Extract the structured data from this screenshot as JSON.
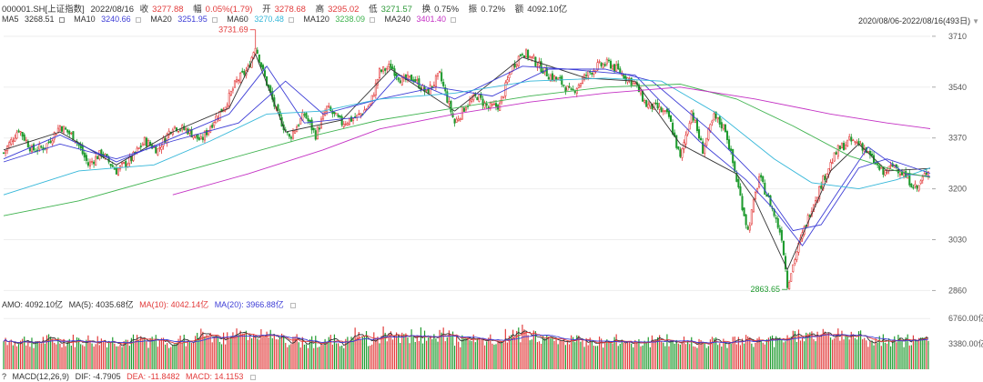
{
  "header": {
    "code": "000001.SH[上证指数]",
    "date": "2022/08/16",
    "close_label": "收",
    "close": "3277.88",
    "change_label": "幅",
    "change": "0.05%(1.79)",
    "open_label": "开",
    "open": "3278.68",
    "high_label": "高",
    "high": "3295.02",
    "low_label": "低",
    "low": "3271.57",
    "turnover_label": "换",
    "turnover": "0.75%",
    "amp_label": "振",
    "amp": "0.72%",
    "amount_label": "额",
    "amount": "4092.10亿"
  },
  "ma_legend": [
    {
      "label": "MA5",
      "value": "3268.51",
      "color": "#333333"
    },
    {
      "label": "MA10",
      "value": "3240.66",
      "color": "#3d3dd6"
    },
    {
      "label": "MA20",
      "value": "3251.95",
      "color": "#3d3dd6"
    },
    {
      "label": "MA60",
      "value": "3270.48",
      "color": "#35b7d9"
    },
    {
      "label": "MA120",
      "value": "3238.09",
      "color": "#3fb34f"
    },
    {
      "label": "MA240",
      "value": "3401.40",
      "color": "#c431c4"
    }
  ],
  "range_text": "2020/08/06-2022/08/16(493日)",
  "volume_legend": {
    "amo": "AMO: 4092.10亿",
    "ma5": "MA(5): 4035.68亿",
    "ma10": "MA(10): 4042.14亿",
    "ma20": "MA(20): 3966.88亿"
  },
  "macd_legend": {
    "q": "?",
    "name": "MACD(12,26,9)",
    "dif": "DIF: -4.7905",
    "dea": "DEA: -11.8482",
    "macd": "MACD: 14.1153"
  },
  "colors": {
    "up": "#e23b3b",
    "down": "#1f9b2f",
    "ma5": "#333333",
    "ma10": "#3d3dd6",
    "ma20": "#3d3dd6",
    "ma60": "#35b7d9",
    "ma120": "#3fb34f",
    "ma240": "#c431c4",
    "grid": "#eeeeee"
  },
  "chart_data": {
    "type": "candlestick",
    "x_range": [
      "2020/08/06",
      "2022/08/16"
    ],
    "trading_days": 493,
    "price_axis": {
      "ticks": [
        2860,
        3030,
        3200,
        3370,
        3540,
        3710
      ],
      "ylim": [
        2840,
        3740
      ]
    },
    "annotations": [
      {
        "label": "3731.69",
        "value": 3731.69,
        "type": "high",
        "day_index": 134
      },
      {
        "label": "2863.65",
        "value": 2863.65,
        "type": "low",
        "day_index": 417
      }
    ],
    "close_path": [
      [
        0,
        3320
      ],
      [
        8,
        3400
      ],
      [
        15,
        3330
      ],
      [
        22,
        3340
      ],
      [
        30,
        3410
      ],
      [
        38,
        3370
      ],
      [
        45,
        3280
      ],
      [
        52,
        3320
      ],
      [
        60,
        3260
      ],
      [
        68,
        3300
      ],
      [
        75,
        3360
      ],
      [
        82,
        3330
      ],
      [
        90,
        3410
      ],
      [
        98,
        3395
      ],
      [
        105,
        3360
      ],
      [
        112,
        3430
      ],
      [
        118,
        3480
      ],
      [
        124,
        3560
      ],
      [
        130,
        3600
      ],
      [
        134,
        3680
      ],
      [
        138,
        3590
      ],
      [
        145,
        3460
      ],
      [
        152,
        3370
      ],
      [
        160,
        3450
      ],
      [
        166,
        3380
      ],
      [
        172,
        3470
      ],
      [
        180,
        3420
      ],
      [
        188,
        3440
      ],
      [
        195,
        3480
      ],
      [
        200,
        3590
      ],
      [
        206,
        3610
      ],
      [
        212,
        3560
      ],
      [
        218,
        3570
      ],
      [
        225,
        3520
      ],
      [
        232,
        3580
      ],
      [
        240,
        3420
      ],
      [
        246,
        3480
      ],
      [
        252,
        3510
      ],
      [
        258,
        3470
      ],
      [
        264,
        3480
      ],
      [
        270,
        3600
      ],
      [
        276,
        3660
      ],
      [
        282,
        3630
      ],
      [
        290,
        3580
      ],
      [
        296,
        3560
      ],
      [
        302,
        3520
      ],
      [
        310,
        3580
      ],
      [
        316,
        3610
      ],
      [
        322,
        3620
      ],
      [
        330,
        3580
      ],
      [
        336,
        3550
      ],
      [
        342,
        3480
      ],
      [
        348,
        3470
      ],
      [
        354,
        3440
      ],
      [
        360,
        3300
      ],
      [
        366,
        3460
      ],
      [
        372,
        3330
      ],
      [
        378,
        3440
      ],
      [
        384,
        3400
      ],
      [
        390,
        3230
      ],
      [
        396,
        3060
      ],
      [
        402,
        3240
      ],
      [
        408,
        3150
      ],
      [
        414,
        3040
      ],
      [
        417,
        2880
      ],
      [
        422,
        2990
      ],
      [
        430,
        3140
      ],
      [
        438,
        3260
      ],
      [
        444,
        3330
      ],
      [
        450,
        3360
      ],
      [
        456,
        3350
      ],
      [
        462,
        3300
      ],
      [
        468,
        3250
      ],
      [
        474,
        3280
      ],
      [
        480,
        3240
      ],
      [
        486,
        3200
      ],
      [
        493,
        3278
      ]
    ],
    "moving_averages": {
      "MA5": [
        [
          0,
          3330
        ],
        [
          30,
          3390
        ],
        [
          60,
          3280
        ],
        [
          90,
          3390
        ],
        [
          120,
          3470
        ],
        [
          134,
          3650
        ],
        [
          150,
          3390
        ],
        [
          180,
          3430
        ],
        [
          206,
          3600
        ],
        [
          240,
          3460
        ],
        [
          276,
          3640
        ],
        [
          310,
          3570
        ],
        [
          336,
          3560
        ],
        [
          360,
          3350
        ],
        [
          390,
          3250
        ],
        [
          400,
          3160
        ],
        [
          417,
          2930
        ],
        [
          440,
          3260
        ],
        [
          455,
          3350
        ],
        [
          470,
          3260
        ],
        [
          493,
          3268
        ]
      ],
      "MA10": [
        [
          0,
          3300
        ],
        [
          30,
          3380
        ],
        [
          60,
          3290
        ],
        [
          90,
          3370
        ],
        [
          120,
          3450
        ],
        [
          140,
          3610
        ],
        [
          160,
          3420
        ],
        [
          190,
          3440
        ],
        [
          210,
          3580
        ],
        [
          240,
          3500
        ],
        [
          276,
          3610
        ],
        [
          300,
          3600
        ],
        [
          336,
          3580
        ],
        [
          370,
          3360
        ],
        [
          395,
          3230
        ],
        [
          410,
          3130
        ],
        [
          425,
          3010
        ],
        [
          445,
          3200
        ],
        [
          460,
          3340
        ],
        [
          480,
          3250
        ],
        [
          493,
          3241
        ]
      ],
      "MA20": [
        [
          0,
          3290
        ],
        [
          30,
          3350
        ],
        [
          60,
          3300
        ],
        [
          90,
          3360
        ],
        [
          125,
          3420
        ],
        [
          150,
          3560
        ],
        [
          170,
          3450
        ],
        [
          200,
          3500
        ],
        [
          230,
          3540
        ],
        [
          260,
          3510
        ],
        [
          290,
          3600
        ],
        [
          320,
          3600
        ],
        [
          345,
          3560
        ],
        [
          375,
          3400
        ],
        [
          400,
          3240
        ],
        [
          420,
          3060
        ],
        [
          435,
          3080
        ],
        [
          455,
          3270
        ],
        [
          470,
          3300
        ],
        [
          493,
          3252
        ]
      ],
      "MA60": [
        [
          0,
          3180
        ],
        [
          40,
          3260
        ],
        [
          80,
          3280
        ],
        [
          110,
          3360
        ],
        [
          140,
          3450
        ],
        [
          170,
          3460
        ],
        [
          200,
          3500
        ],
        [
          240,
          3520
        ],
        [
          280,
          3560
        ],
        [
          320,
          3570
        ],
        [
          350,
          3560
        ],
        [
          380,
          3450
        ],
        [
          410,
          3300
        ],
        [
          430,
          3220
        ],
        [
          455,
          3200
        ],
        [
          475,
          3230
        ],
        [
          493,
          3270
        ]
      ],
      "MA120": [
        [
          0,
          3110
        ],
        [
          40,
          3160
        ],
        [
          80,
          3230
        ],
        [
          120,
          3300
        ],
        [
          160,
          3370
        ],
        [
          200,
          3430
        ],
        [
          240,
          3470
        ],
        [
          280,
          3510
        ],
        [
          320,
          3540
        ],
        [
          360,
          3550
        ],
        [
          390,
          3500
        ],
        [
          420,
          3410
        ],
        [
          450,
          3310
        ],
        [
          475,
          3260
        ],
        [
          493,
          3238
        ]
      ],
      "MA240": [
        [
          90,
          3180
        ],
        [
          130,
          3250
        ],
        [
          170,
          3330
        ],
        [
          200,
          3400
        ],
        [
          240,
          3450
        ],
        [
          280,
          3490
        ],
        [
          320,
          3520
        ],
        [
          360,
          3540
        ],
        [
          400,
          3500
        ],
        [
          440,
          3450
        ],
        [
          470,
          3420
        ],
        [
          493,
          3401
        ]
      ]
    },
    "volume_panel": {
      "unit": "亿",
      "ticks": [
        3380,
        6760
      ],
      "latest": 4092.1
    }
  }
}
